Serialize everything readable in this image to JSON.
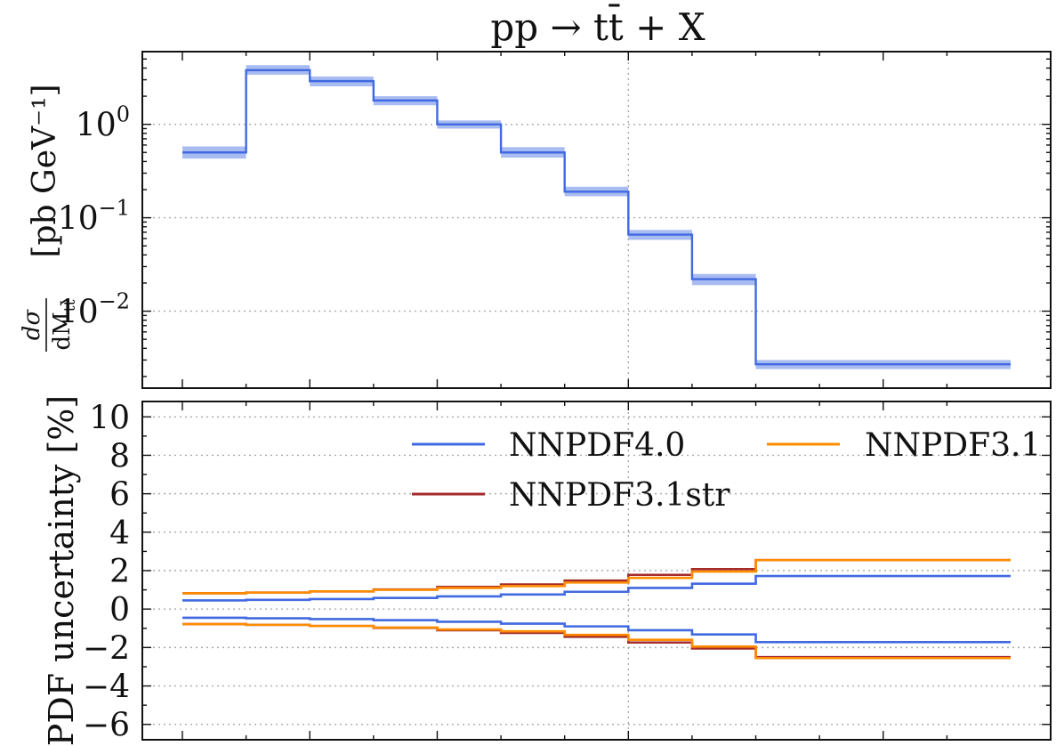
{
  "figure_title": "pp → tt̄ + X",
  "chart_data": [
    {
      "type": "line",
      "step": true,
      "yscale": "log",
      "title": "",
      "ylabel": {
        "main": "[pb GeV⁻¹]",
        "frac_num": "dσ",
        "frac_den": "dM",
        "frac_den_sub": "tt̄"
      },
      "ylim": [
        0.0015,
        6
      ],
      "yticks": [
        {
          "value": 1,
          "base": "10",
          "exp": "0"
        },
        {
          "value": 0.1,
          "base": "10",
          "exp": "−1"
        },
        {
          "value": 0.01,
          "base": "10",
          "exp": "−2"
        }
      ],
      "grid": true,
      "bin_edges": [
        0,
        1,
        2,
        3,
        4,
        5,
        6,
        7,
        8,
        9,
        13
      ],
      "series": [
        {
          "values": [
            0.5,
            3.8,
            2.9,
            1.8,
            1.0,
            0.5,
            0.19,
            0.066,
            0.022,
            0.0027
          ],
          "band_low": [
            0.43,
            3.4,
            2.55,
            1.6,
            0.9,
            0.44,
            0.17,
            0.058,
            0.019,
            0.0024
          ],
          "band_high": [
            0.58,
            4.3,
            3.25,
            2.0,
            1.1,
            0.57,
            0.215,
            0.074,
            0.025,
            0.003
          ],
          "color": "#4169e1",
          "band_color": "#99b0ee"
        }
      ]
    },
    {
      "type": "line",
      "step": true,
      "title": "",
      "ylabel": "PDF uncertainty [%]",
      "ylim": [
        -6.8,
        10.8
      ],
      "yticks": [
        "−6",
        "−4",
        "−2",
        "0",
        "2",
        "4",
        "6",
        "8",
        "10"
      ],
      "grid": true,
      "legend": "upper-right, two columns",
      "bin_edges": [
        0,
        1,
        2,
        3,
        4,
        5,
        6,
        7,
        8,
        9,
        13
      ],
      "series": [
        {
          "name": "NNPDF4.0",
          "color": "#4169e1",
          "upper": [
            0.45,
            0.48,
            0.52,
            0.58,
            0.66,
            0.76,
            0.9,
            1.1,
            1.32,
            1.72
          ],
          "lower": [
            -0.45,
            -0.48,
            -0.52,
            -0.58,
            -0.66,
            -0.76,
            -0.9,
            -1.1,
            -1.32,
            -1.72
          ]
        },
        {
          "name": "NNPDF3.1",
          "color": "#ff8c00",
          "upper": [
            0.82,
            0.86,
            0.92,
            1.0,
            1.1,
            1.2,
            1.38,
            1.62,
            1.95,
            2.55
          ],
          "lower": [
            -0.78,
            -0.82,
            -0.88,
            -0.96,
            -1.06,
            -1.16,
            -1.34,
            -1.6,
            -1.95,
            -2.55
          ]
        },
        {
          "name": "NNPDF3.1str",
          "color": "#a52a2a",
          "upper": [
            0.82,
            0.86,
            0.92,
            1.02,
            1.15,
            1.28,
            1.48,
            1.78,
            2.08,
            2.55
          ],
          "lower": [
            -0.78,
            -0.82,
            -0.88,
            -0.98,
            -1.1,
            -1.24,
            -1.44,
            -1.74,
            -2.05,
            -2.5
          ]
        }
      ]
    }
  ]
}
